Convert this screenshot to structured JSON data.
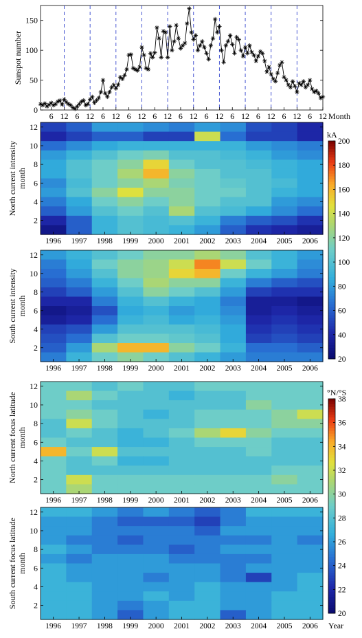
{
  "chart_data": [
    {
      "type": "line",
      "ylabel": "Sunspot number",
      "xlabel": "Month",
      "ylim": [
        0,
        175
      ],
      "yticks": [
        0,
        50,
        100,
        150
      ],
      "x_tick_labels": [
        "6",
        "12",
        "6",
        "12",
        "6",
        "12",
        "6",
        "12",
        "6",
        "12",
        "6",
        "12",
        "6",
        "12",
        "6",
        "12",
        "6",
        "12",
        "6",
        "12",
        "6",
        "12"
      ],
      "x_range_months": [
        1,
        132
      ],
      "year_boundaries_month": [
        12,
        24,
        36,
        48,
        60,
        72,
        84,
        96,
        108,
        120
      ],
      "series": [
        {
          "values": [
            10,
            8,
            11,
            6,
            9,
            12,
            8,
            10,
            14,
            16,
            9,
            18,
            13,
            10,
            8,
            4,
            2,
            6,
            10,
            14,
            16,
            8,
            10,
            18,
            22,
            12,
            16,
            20,
            30,
            50,
            28,
            22,
            30,
            38,
            42,
            36,
            42,
            55,
            52,
            58,
            68,
            92,
            93,
            70,
            68,
            66,
            72,
            105,
            92,
            70,
            68,
            95,
            88,
            96,
            138,
            120,
            88,
            132,
            130,
            88,
            140,
            100,
            115,
            142,
            120,
            103,
            108,
            112,
            145,
            170,
            130,
            118,
            125,
            100,
            108,
            115,
            105,
            95,
            85,
            108,
            120,
            152,
            130,
            140,
            100,
            80,
            108,
            115,
            125,
            110,
            95,
            122,
            118,
            100,
            90,
            105,
            95,
            108,
            97,
            92,
            82,
            90,
            98,
            95,
            82,
            64,
            72,
            60,
            52,
            48,
            62,
            75,
            80,
            55,
            50,
            42,
            38,
            48,
            40,
            30,
            45,
            42,
            48,
            38,
            42,
            50,
            35,
            30,
            32,
            28,
            20,
            22
          ]
        }
      ]
    },
    {
      "type": "heatmap",
      "ylabel": "North current intensity month",
      "yticks": [
        2,
        4,
        6,
        8,
        10,
        12
      ],
      "years": [
        "1996",
        "1997",
        "1998",
        "1999",
        "2000",
        "2001",
        "2002",
        "2003",
        "2004",
        "2005",
        "2006"
      ],
      "colorbar": {
        "unit": "kA",
        "min": 20,
        "max": 200,
        "ticks": [
          20,
          40,
          60,
          80,
          100,
          120,
          140,
          160,
          180,
          200
        ]
      },
      "values": [
        [
          50,
          60,
          80,
          80,
          75,
          70,
          80,
          75,
          55,
          50,
          40
        ],
        [
          40,
          50,
          60,
          60,
          50,
          50,
          140,
          65,
          50,
          50,
          40
        ],
        [
          65,
          75,
          85,
          90,
          90,
          90,
          90,
          90,
          80,
          75,
          70
        ],
        [
          80,
          90,
          100,
          110,
          115,
          100,
          100,
          95,
          90,
          80,
          75
        ],
        [
          85,
          100,
          110,
          120,
          150,
          110,
          100,
          100,
          95,
          90,
          85
        ],
        [
          85,
          100,
          110,
          130,
          160,
          120,
          110,
          100,
          100,
          90,
          85
        ],
        [
          75,
          95,
          110,
          120,
          130,
          115,
          110,
          105,
          100,
          95,
          85
        ],
        [
          80,
          100,
          120,
          145,
          120,
          120,
          110,
          110,
          100,
          90,
          85
        ],
        [
          70,
          85,
          110,
          120,
          110,
          120,
          110,
          100,
          100,
          80,
          75
        ],
        [
          60,
          80,
          100,
          110,
          100,
          130,
          100,
          95,
          85,
          75,
          65
        ],
        [
          40,
          60,
          90,
          100,
          95,
          100,
          90,
          70,
          60,
          55,
          45
        ],
        [
          30,
          60,
          90,
          100,
          95,
          90,
          80,
          60,
          45,
          40,
          35
        ]
      ]
    },
    {
      "type": "heatmap",
      "ylabel": "South current intensity month",
      "yticks": [
        2,
        4,
        6,
        8,
        10,
        12
      ],
      "years": [
        "1996",
        "1997",
        "1998",
        "1999",
        "2000",
        "2001",
        "2002",
        "2003",
        "2004",
        "2005",
        "2006"
      ],
      "colorbar": {
        "unit": "kA",
        "min": 20,
        "max": 200,
        "ticks": [
          20,
          40,
          60,
          80,
          100,
          120,
          140,
          160,
          180,
          200
        ]
      },
      "values": [
        [
          80,
          90,
          100,
          110,
          120,
          120,
          130,
          120,
          100,
          90,
          80
        ],
        [
          70,
          85,
          110,
          120,
          125,
          140,
          170,
          140,
          110,
          90,
          75
        ],
        [
          65,
          80,
          100,
          120,
          125,
          150,
          160,
          110,
          90,
          80,
          70
        ],
        [
          60,
          70,
          90,
          110,
          130,
          120,
          120,
          90,
          70,
          60,
          55
        ],
        [
          50,
          60,
          80,
          100,
          120,
          110,
          100,
          80,
          50,
          45,
          45
        ],
        [
          40,
          40,
          70,
          90,
          100,
          90,
          85,
          70,
          35,
          35,
          30
        ],
        [
          30,
          35,
          55,
          85,
          90,
          80,
          85,
          75,
          35,
          40,
          35
        ],
        [
          35,
          40,
          65,
          90,
          95,
          85,
          90,
          80,
          40,
          45,
          40
        ],
        [
          50,
          55,
          80,
          100,
          100,
          100,
          95,
          85,
          45,
          50,
          45
        ],
        [
          55,
          65,
          100,
          110,
          110,
          105,
          100,
          85,
          50,
          55,
          50
        ],
        [
          60,
          80,
          130,
          160,
          160,
          120,
          110,
          90,
          65,
          65,
          60
        ],
        [
          70,
          90,
          110,
          120,
          110,
          100,
          90,
          80,
          70,
          70,
          70
        ]
      ]
    },
    {
      "type": "heatmap",
      "ylabel": "North current focus latitude month",
      "yticks": [
        2,
        4,
        6,
        8,
        10,
        12
      ],
      "years": [
        "1996",
        "1997",
        "1998",
        "1999",
        "2000",
        "2001",
        "2002",
        "2003",
        "2004",
        "2005",
        "2006"
      ],
      "colorbar": {
        "unit": "°N/°S",
        "min": 20,
        "max": 38,
        "ticks": [
          20,
          22,
          24,
          26,
          28,
          30,
          32,
          34,
          36,
          38
        ]
      },
      "values": [
        [
          29,
          29,
          28,
          29,
          28,
          28,
          29,
          29,
          29,
          29,
          29
        ],
        [
          29,
          31,
          29,
          28,
          28,
          27,
          28,
          28,
          29,
          29,
          29
        ],
        [
          29,
          29,
          28,
          28,
          28,
          28,
          28,
          28,
          30,
          29,
          29
        ],
        [
          29,
          30,
          29,
          28,
          27,
          28,
          29,
          29,
          29,
          30,
          32
        ],
        [
          28,
          32,
          29,
          28,
          28,
          28,
          29,
          29,
          29,
          30,
          30
        ],
        [
          28,
          29,
          28,
          27,
          28,
          29,
          31,
          33,
          30,
          29,
          29
        ],
        [
          29,
          28,
          28,
          27,
          27,
          28,
          29,
          29,
          29,
          28,
          28
        ],
        [
          34,
          29,
          32,
          28,
          28,
          28,
          28,
          28,
          29,
          28,
          28
        ],
        [
          29,
          28,
          29,
          27,
          27,
          28,
          28,
          28,
          28,
          28,
          28
        ],
        [
          29,
          28,
          28,
          28,
          28,
          28,
          28,
          28,
          28,
          29,
          29
        ],
        [
          29,
          32,
          29,
          29,
          29,
          29,
          29,
          29,
          29,
          30,
          29
        ],
        [
          29,
          31,
          29,
          29,
          29,
          29,
          29,
          29,
          29,
          29,
          29
        ]
      ]
    },
    {
      "type": "heatmap",
      "ylabel": "South current focus latitude month",
      "yticks": [
        2,
        4,
        6,
        8,
        10,
        12
      ],
      "years": [
        "1996",
        "1997",
        "1998",
        "1999",
        "2000",
        "2001",
        "2002",
        "2003",
        "2004",
        "2005",
        "2006"
      ],
      "xlabel": "Year",
      "colorbar": {
        "unit": "°N/°S",
        "min": 20,
        "max": 38,
        "ticks": [
          20,
          22,
          24,
          26,
          28,
          30,
          32,
          34,
          36,
          38
        ]
      },
      "values": [
        [
          27,
          27,
          26,
          25,
          26,
          25,
          24,
          25,
          27,
          27,
          27
        ],
        [
          26,
          26,
          25,
          24,
          24,
          24,
          23,
          25,
          26,
          26,
          26
        ],
        [
          26,
          26,
          25,
          25,
          25,
          25,
          24,
          26,
          26,
          26,
          26
        ],
        [
          26,
          25,
          25,
          24,
          25,
          25,
          25,
          25,
          25,
          26,
          25
        ],
        [
          27,
          26,
          25,
          25,
          25,
          24,
          25,
          26,
          26,
          26,
          26
        ],
        [
          26,
          25,
          26,
          26,
          26,
          25,
          25,
          25,
          25,
          26,
          26
        ],
        [
          27,
          26,
          26,
          26,
          26,
          26,
          26,
          25,
          26,
          26,
          26
        ],
        [
          27,
          26,
          26,
          26,
          25,
          26,
          26,
          25,
          23,
          26,
          27
        ],
        [
          27,
          27,
          26,
          26,
          26,
          26,
          27,
          26,
          26,
          26,
          27
        ],
        [
          27,
          27,
          26,
          26,
          27,
          26,
          27,
          26,
          26,
          27,
          27
        ],
        [
          27,
          27,
          26,
          25,
          26,
          27,
          27,
          26,
          26,
          27,
          27
        ],
        [
          27,
          27,
          26,
          24,
          26,
          27,
          27,
          24,
          26,
          27,
          27
        ]
      ]
    }
  ]
}
